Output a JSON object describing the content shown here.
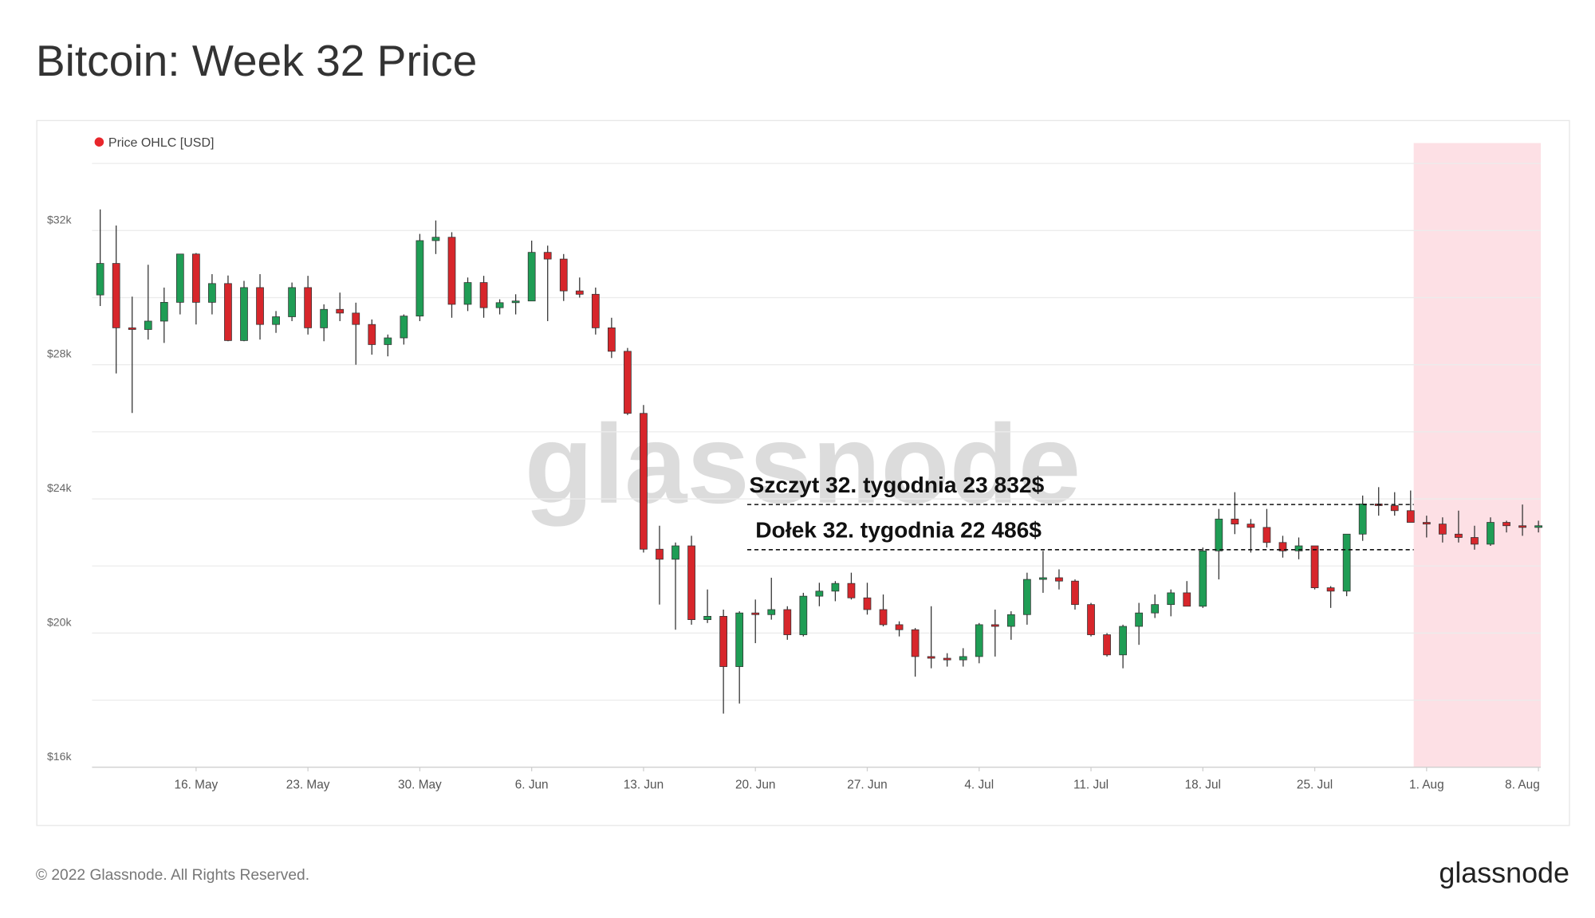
{
  "chart_data": {
    "type": "candlestick",
    "title": "Bitcoin: Week 32 Price",
    "footer": "© 2022 Glassnode. All Rights Reserved.",
    "logo": "glassnode",
    "watermark": "glassnode",
    "ylim": [
      16000,
      34000
    ],
    "yticks": [
      {
        "value": 16000,
        "label": "$16k"
      },
      {
        "value": 20000,
        "label": "$20k"
      },
      {
        "value": 24000,
        "label": "$24k"
      },
      {
        "value": 28000,
        "label": "$28k"
      },
      {
        "value": 32000,
        "label": "$32k"
      }
    ],
    "minor_yticks": [
      18000,
      22000,
      26000,
      30000,
      34000
    ],
    "grid": true,
    "up_color": "#1f9d55",
    "down_color": "#d7262b",
    "highlight_color": "#fde0e5",
    "categories": [
      null,
      null,
      null,
      null,
      null,
      null,
      "16. May",
      null,
      null,
      null,
      null,
      null,
      null,
      "23. May",
      null,
      null,
      null,
      null,
      null,
      null,
      "30. May",
      null,
      null,
      null,
      null,
      null,
      null,
      "6. Jun",
      null,
      null,
      null,
      null,
      null,
      null,
      "13. Jun",
      null,
      null,
      null,
      null,
      null,
      null,
      "20. Jun",
      null,
      null,
      null,
      null,
      null,
      null,
      "27. Jun",
      null,
      null,
      null,
      null,
      null,
      null,
      "4. Jul",
      null,
      null,
      null,
      null,
      null,
      null,
      "11. Jul",
      null,
      null,
      null,
      null,
      null,
      null,
      "18. Jul",
      null,
      null,
      null,
      null,
      null,
      null,
      "25. Jul",
      null,
      null,
      null,
      null,
      null,
      null,
      "1. Aug",
      null,
      null,
      null,
      null,
      null,
      null,
      "8. Aug"
    ],
    "series": [
      {
        "name": "Price OHLC [USD]",
        "color": "#e8262b",
        "open": [
          30080,
          31020,
          29100,
          29050,
          29300,
          29860,
          31300,
          29860,
          30420,
          28720,
          30300,
          29200,
          29430,
          30300,
          29100,
          29650,
          29540,
          29200,
          28600,
          28800,
          29450,
          31700,
          31800,
          29800,
          30450,
          29700,
          29850,
          29900,
          31350,
          31150,
          30200,
          30100,
          29100,
          28400,
          26550,
          22500,
          22200,
          22600,
          20400,
          20500,
          19000,
          20600,
          20550,
          20700,
          19950,
          21100,
          21250,
          21480,
          21050,
          20700,
          20250,
          20100,
          19300,
          19250,
          19200,
          19300,
          20250,
          20200,
          20550,
          21600,
          21650,
          21550,
          20850,
          19950,
          19350,
          20200,
          20600,
          20850,
          21200,
          20800,
          22450,
          23400,
          23250,
          23150,
          22700,
          22450,
          22600,
          21350,
          21250,
          22950,
          23850,
          23800,
          23650,
          23300,
          23250,
          22950,
          22850,
          22650,
          23300,
          23200,
          23150
        ],
        "high": [
          32630,
          32150,
          30030,
          30980,
          30300,
          31300,
          31330,
          30700,
          30660,
          30500,
          30700,
          29600,
          30450,
          30650,
          29800,
          30150,
          29850,
          29350,
          28900,
          29500,
          31900,
          32300,
          31950,
          30600,
          30650,
          29950,
          30100,
          31700,
          31550,
          31300,
          30600,
          30300,
          29400,
          28500,
          26800,
          23200,
          22700,
          22900,
          21300,
          20700,
          20650,
          21000,
          21650,
          20800,
          21200,
          21500,
          21550,
          21800,
          21500,
          21150,
          20350,
          20150,
          20800,
          19400,
          19550,
          20300,
          20700,
          20650,
          21800,
          22450,
          21900,
          21600,
          20900,
          20000,
          20250,
          20900,
          21150,
          21300,
          21550,
          22550,
          23700,
          24200,
          23400,
          23700,
          22900,
          22850,
          22600,
          21400,
          22950,
          24100,
          24350,
          24200,
          24250,
          23500,
          23450,
          23650,
          23200,
          23450,
          23350,
          23832,
          23350
        ],
        "low": [
          29750,
          27740,
          26560,
          28750,
          28650,
          29500,
          29200,
          29500,
          28700,
          28700,
          28750,
          28950,
          29300,
          28900,
          28700,
          29300,
          28000,
          28300,
          28250,
          28600,
          29300,
          31300,
          29400,
          29600,
          29400,
          29500,
          29500,
          29900,
          29300,
          29900,
          30000,
          28900,
          28200,
          26500,
          22400,
          20850,
          20100,
          20250,
          20300,
          17600,
          17900,
          19700,
          20400,
          19800,
          19900,
          20800,
          20950,
          21000,
          20550,
          20200,
          19900,
          18700,
          18950,
          19000,
          19000,
          19100,
          19300,
          19800,
          20250,
          21200,
          21300,
          20700,
          19900,
          19300,
          18950,
          19650,
          20450,
          20500,
          20800,
          20750,
          21600,
          22950,
          22400,
          22550,
          22250,
          22200,
          21300,
          20750,
          21100,
          22750,
          23500,
          23500,
          23300,
          22850,
          22700,
          22700,
          22486,
          22600,
          23000,
          22900,
          23000
        ],
        "close": [
          31020,
          29100,
          29050,
          29300,
          29860,
          31300,
          29860,
          30420,
          28720,
          30300,
          29200,
          29430,
          30300,
          29100,
          29650,
          29540,
          29200,
          28600,
          28800,
          29450,
          31700,
          31800,
          29800,
          30450,
          29700,
          29850,
          29900,
          31350,
          31150,
          30200,
          30100,
          29100,
          28400,
          26550,
          22500,
          22200,
          22600,
          20400,
          20500,
          19000,
          20600,
          20550,
          20700,
          19950,
          21100,
          21250,
          21480,
          21050,
          20700,
          20250,
          20100,
          19300,
          19250,
          19200,
          19300,
          20250,
          20200,
          20550,
          21600,
          21650,
          21550,
          20850,
          19950,
          19350,
          20200,
          20600,
          20850,
          21200,
          20800,
          22450,
          23400,
          23250,
          23150,
          22700,
          22450,
          22600,
          21350,
          21250,
          22950,
          23850,
          23800,
          23650,
          23300,
          23250,
          22950,
          22850,
          22650,
          23300,
          23200,
          23150,
          23200
        ]
      }
    ],
    "annotations": [
      {
        "text": "Szczyt 32. tygodnia 23 832$",
        "value": 23832
      },
      {
        "text": "Dołek 32. tygodnia 22 486$",
        "value": 22486
      }
    ]
  }
}
